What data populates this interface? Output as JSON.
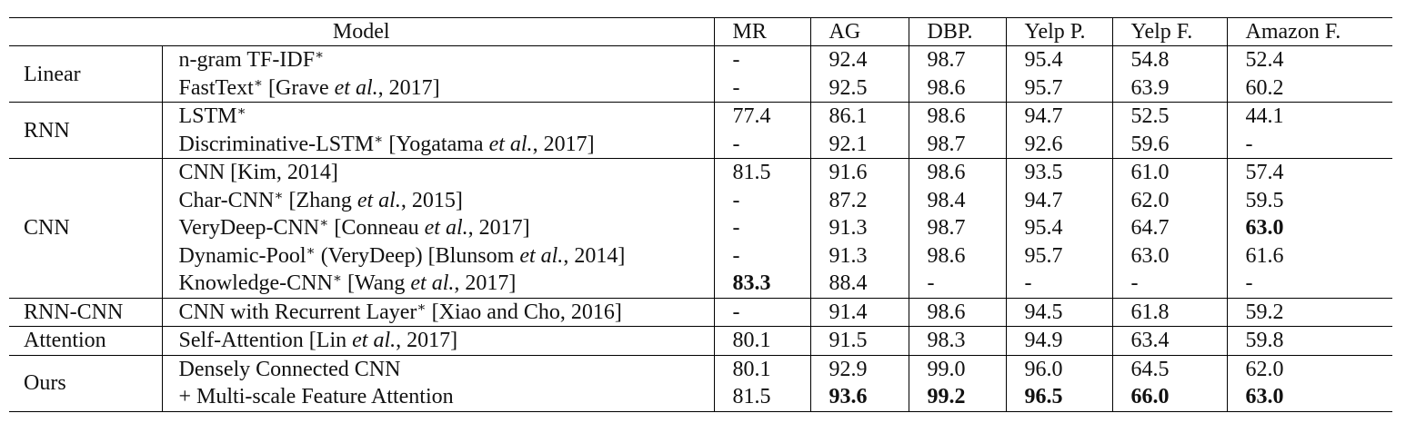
{
  "table": {
    "header": {
      "model": "Model",
      "columns": [
        "MR",
        "AG",
        "DBP.",
        "Yelp P.",
        "Yelp F.",
        "Amazon F."
      ]
    },
    "groups": [
      {
        "category": "Linear",
        "rows": [
          {
            "model": "n-gram TF-IDF*",
            "values": [
              "-",
              "92.4",
              "98.7",
              "95.4",
              "54.8",
              "52.4"
            ],
            "bold": []
          },
          {
            "model": "FastText* [Grave et al., 2017]",
            "values": [
              "-",
              "92.5",
              "98.6",
              "95.7",
              "63.9",
              "60.2"
            ],
            "bold": []
          }
        ]
      },
      {
        "category": "RNN",
        "rows": [
          {
            "model": "LSTM*",
            "values": [
              "77.4",
              "86.1",
              "98.6",
              "94.7",
              "52.5",
              "44.1"
            ],
            "bold": []
          },
          {
            "model": "Discriminative-LSTM* [Yogatama et al., 2017]",
            "values": [
              "-",
              "92.1",
              "98.7",
              "92.6",
              "59.6",
              "-"
            ],
            "bold": []
          }
        ]
      },
      {
        "category": "CNN",
        "rows": [
          {
            "model": "CNN [Kim, 2014]",
            "values": [
              "81.5",
              "91.6",
              "98.6",
              "93.5",
              "61.0",
              "57.4"
            ],
            "bold": []
          },
          {
            "model": "Char-CNN* [Zhang et al., 2015]",
            "values": [
              "-",
              "87.2",
              "98.4",
              "94.7",
              "62.0",
              "59.5"
            ],
            "bold": []
          },
          {
            "model": "VeryDeep-CNN* [Conneau et al., 2017]",
            "values": [
              "-",
              "91.3",
              "98.7",
              "95.4",
              "64.7",
              "63.0"
            ],
            "bold": [
              5
            ]
          },
          {
            "model": "Dynamic-Pool* (VeryDeep) [Blunsom et al., 2014]",
            "values": [
              "-",
              "91.3",
              "98.6",
              "95.7",
              "63.0",
              "61.6"
            ],
            "bold": []
          },
          {
            "model": "Knowledge-CNN* [Wang et al., 2017]",
            "values": [
              "83.3",
              "88.4",
              "-",
              "-",
              "-",
              "-"
            ],
            "bold": [
              0
            ]
          }
        ]
      },
      {
        "category": "RNN-CNN",
        "rows": [
          {
            "model": "CNN with Recurrent Layer* [Xiao and Cho, 2016]",
            "values": [
              "-",
              "91.4",
              "98.6",
              "94.5",
              "61.8",
              "59.2"
            ],
            "bold": []
          }
        ]
      },
      {
        "category": "Attention",
        "rows": [
          {
            "model": "Self-Attention [Lin et al., 2017]",
            "values": [
              "80.1",
              "91.5",
              "98.3",
              "94.9",
              "63.4",
              "59.8"
            ],
            "bold": []
          }
        ]
      },
      {
        "category": "Ours",
        "rows": [
          {
            "model": "Densely Connected CNN",
            "values": [
              "80.1",
              "92.9",
              "99.0",
              "96.0",
              "64.5",
              "62.0"
            ],
            "bold": []
          },
          {
            "model": "+ Multi-scale Feature Attention",
            "values": [
              "81.5",
              "93.6",
              "99.2",
              "96.5",
              "66.0",
              "63.0"
            ],
            "bold": [
              1,
              2,
              3,
              4,
              5
            ]
          }
        ]
      }
    ]
  }
}
